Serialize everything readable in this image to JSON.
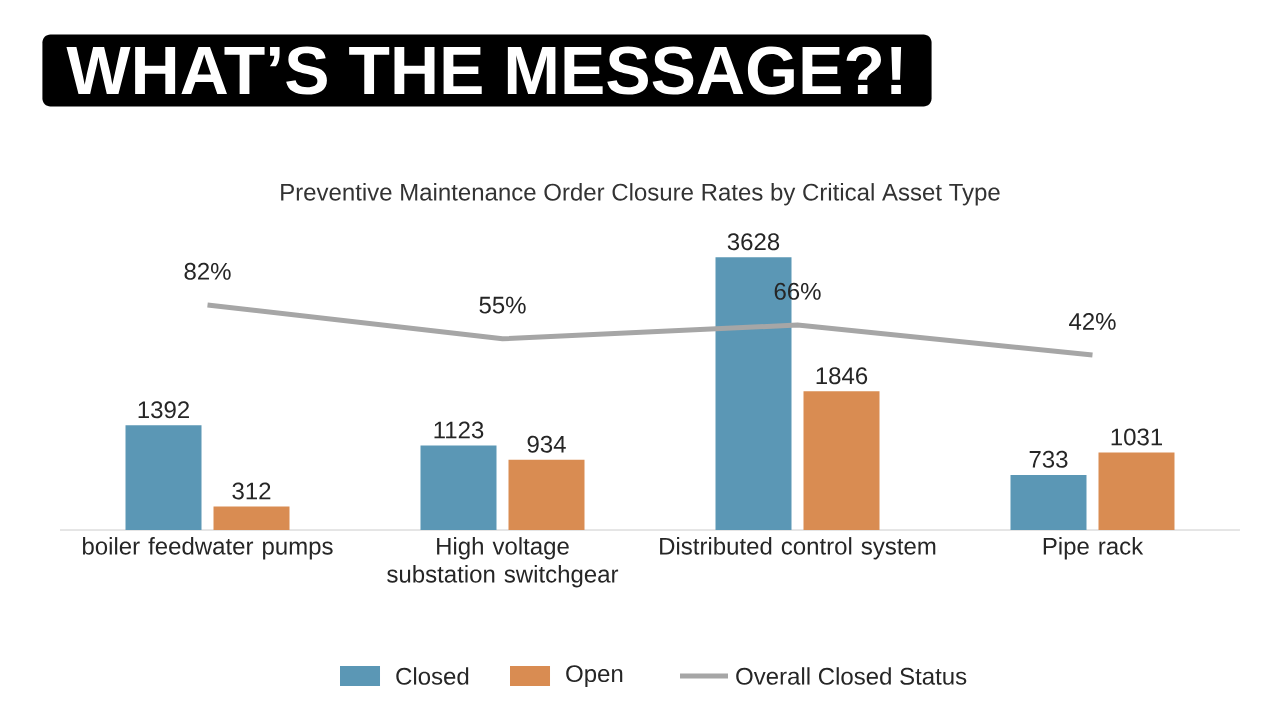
{
  "chart_data": {
    "type": "bar",
    "title": "WHAT’S THE MESSAGE?!",
    "subtitle": "Preventive Maintenance Order Closure Rates by Critical Asset Type",
    "categories": [
      "boiler feedwater pumps",
      "High voltage substation switchgear",
      "Distributed control system",
      "Pipe rack"
    ],
    "series": [
      {
        "name": "Closed",
        "color": "#5b97b5",
        "values": [
          1392,
          1123,
          3628,
          733
        ]
      },
      {
        "name": "Open",
        "color": "#d98c52",
        "values": [
          312,
          934,
          1846,
          1031
        ]
      },
      {
        "name": "Overall Closed Status",
        "type": "line",
        "axis": "y2",
        "color": "#a6a6a6",
        "values": [
          82,
          55,
          66,
          42
        ],
        "value_labels": [
          "82%",
          "55%",
          "66%",
          "42%"
        ]
      }
    ],
    "tick_labels": "x",
    "data_labels": true,
    "grid": false,
    "legend": "bottom",
    "marker": "none"
  }
}
